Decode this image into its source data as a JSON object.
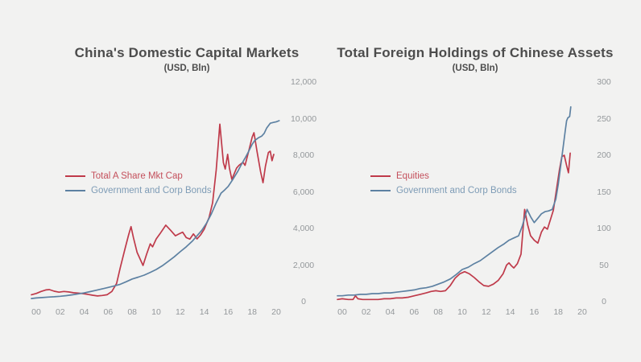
{
  "page": {
    "background": "#f2f2f1"
  },
  "chart_data": [
    {
      "type": "line",
      "title": "China's Domestic Capital Markets",
      "subtitle": "(USD, Bln)",
      "xlabel": "",
      "ylabel": "",
      "xlim": [
        -0.5,
        21
      ],
      "ylim": [
        0,
        12000
      ],
      "grid": false,
      "legend_position": "left-middle",
      "x_tick_labels": [
        "00",
        "02",
        "04",
        "06",
        "08",
        "10",
        "12",
        "14",
        "16",
        "18",
        "20"
      ],
      "x_tick_years": [
        0,
        2,
        4,
        6,
        8,
        10,
        12,
        14,
        16,
        18,
        20
      ],
      "y_tick_labels": [
        "0",
        "2,000",
        "4,000",
        "6,000",
        "8,000",
        "10,000",
        "12,000"
      ],
      "y_tick_values": [
        0,
        2000,
        4000,
        6000,
        8000,
        10000,
        12000
      ],
      "series": [
        {
          "name": "Total A Share Mkt Cap",
          "color": "#bf3a4a",
          "legend_text_color": "#c4505c",
          "points": [
            [
              -0.4,
              380
            ],
            [
              0,
              450
            ],
            [
              0.4,
              560
            ],
            [
              0.8,
              640
            ],
            [
              1.1,
              660
            ],
            [
              1.5,
              570
            ],
            [
              1.9,
              520
            ],
            [
              2.3,
              560
            ],
            [
              2.7,
              530
            ],
            [
              3.1,
              490
            ],
            [
              3.5,
              470
            ],
            [
              3.9,
              440
            ],
            [
              4.3,
              400
            ],
            [
              4.7,
              350
            ],
            [
              5.1,
              310
            ],
            [
              5.5,
              340
            ],
            [
              5.9,
              380
            ],
            [
              6.3,
              560
            ],
            [
              6.7,
              1000
            ],
            [
              7.0,
              1850
            ],
            [
              7.4,
              2900
            ],
            [
              7.7,
              3650
            ],
            [
              7.9,
              4100
            ],
            [
              8.1,
              3500
            ],
            [
              8.4,
              2700
            ],
            [
              8.9,
              1980
            ],
            [
              9.2,
              2600
            ],
            [
              9.5,
              3160
            ],
            [
              9.7,
              3000
            ],
            [
              10.0,
              3430
            ],
            [
              10.3,
              3700
            ],
            [
              10.8,
              4180
            ],
            [
              11.2,
              3900
            ],
            [
              11.6,
              3600
            ],
            [
              11.9,
              3700
            ],
            [
              12.2,
              3800
            ],
            [
              12.5,
              3500
            ],
            [
              12.8,
              3420
            ],
            [
              13.1,
              3700
            ],
            [
              13.4,
              3430
            ],
            [
              13.7,
              3650
            ],
            [
              14.0,
              3960
            ],
            [
              14.4,
              4600
            ],
            [
              14.7,
              5400
            ],
            [
              15.0,
              7200
            ],
            [
              15.3,
              9700
            ],
            [
              15.6,
              7600
            ],
            [
              15.75,
              7250
            ],
            [
              15.95,
              8050
            ],
            [
              16.1,
              7300
            ],
            [
              16.3,
              6680
            ],
            [
              16.5,
              7000
            ],
            [
              16.7,
              7300
            ],
            [
              16.9,
              7450
            ],
            [
              17.1,
              7550
            ],
            [
              17.25,
              7600
            ],
            [
              17.4,
              7450
            ],
            [
              17.7,
              8200
            ],
            [
              18.0,
              9000
            ],
            [
              18.15,
              9230
            ],
            [
              18.4,
              8200
            ],
            [
              18.7,
              7100
            ],
            [
              18.9,
              6500
            ],
            [
              19.1,
              7400
            ],
            [
              19.35,
              8150
            ],
            [
              19.5,
              8220
            ],
            [
              19.65,
              7700
            ],
            [
              19.8,
              8050
            ]
          ]
        },
        {
          "name": "Government and Corp Bonds",
          "color": "#5d81a2",
          "legend_text_color": "#7e9cb6",
          "points": [
            [
              -0.4,
              170
            ],
            [
              0,
              200
            ],
            [
              0.5,
              225
            ],
            [
              1,
              250
            ],
            [
              1.5,
              270
            ],
            [
              2,
              295
            ],
            [
              2.5,
              330
            ],
            [
              3,
              375
            ],
            [
              3.5,
              425
            ],
            [
              4,
              480
            ],
            [
              4.5,
              550
            ],
            [
              5,
              625
            ],
            [
              5.5,
              700
            ],
            [
              6,
              780
            ],
            [
              6.5,
              860
            ],
            [
              7,
              950
            ],
            [
              7.5,
              1090
            ],
            [
              8,
              1240
            ],
            [
              8.5,
              1340
            ],
            [
              9,
              1450
            ],
            [
              9.5,
              1600
            ],
            [
              10,
              1760
            ],
            [
              10.5,
              1960
            ],
            [
              11,
              2200
            ],
            [
              11.5,
              2450
            ],
            [
              12,
              2730
            ],
            [
              12.5,
              3000
            ],
            [
              13,
              3300
            ],
            [
              13.4,
              3600
            ],
            [
              13.8,
              3900
            ],
            [
              14.2,
              4300
            ],
            [
              14.6,
              4800
            ],
            [
              15,
              5400
            ],
            [
              15.4,
              5930
            ],
            [
              15.7,
              6100
            ],
            [
              16.0,
              6300
            ],
            [
              16.4,
              6700
            ],
            [
              16.8,
              7120
            ],
            [
              17.1,
              7500
            ],
            [
              17.4,
              7840
            ],
            [
              17.7,
              8200
            ],
            [
              18.0,
              8600
            ],
            [
              18.2,
              8800
            ],
            [
              18.5,
              8950
            ],
            [
              18.8,
              9050
            ],
            [
              19.0,
              9200
            ],
            [
              19.2,
              9480
            ],
            [
              19.5,
              9750
            ],
            [
              19.8,
              9800
            ],
            [
              20.0,
              9830
            ],
            [
              20.25,
              9890
            ]
          ]
        }
      ]
    },
    {
      "type": "line",
      "title": "Total Foreign Holdings of Chinese Assets",
      "subtitle": "(USD, Bln)",
      "xlabel": "",
      "ylabel": "",
      "xlim": [
        -0.5,
        21
      ],
      "ylim": [
        0,
        300
      ],
      "grid": false,
      "legend_position": "left-middle",
      "x_tick_labels": [
        "00",
        "02",
        "04",
        "06",
        "08",
        "10",
        "12",
        "14",
        "16",
        "18",
        "20"
      ],
      "x_tick_years": [
        0,
        2,
        4,
        6,
        8,
        10,
        12,
        14,
        16,
        18,
        20
      ],
      "y_tick_labels": [
        "0",
        "50",
        "100",
        "150",
        "200",
        "250",
        "300"
      ],
      "y_tick_values": [
        0,
        50,
        100,
        150,
        200,
        250,
        300
      ],
      "series": [
        {
          "name": "Equities",
          "color": "#bf3a4a",
          "legend_text_color": "#c4505c",
          "points": [
            [
              -0.4,
              3
            ],
            [
              0,
              4
            ],
            [
              0.5,
              3
            ],
            [
              0.9,
              3
            ],
            [
              1.1,
              8
            ],
            [
              1.3,
              4
            ],
            [
              1.7,
              3
            ],
            [
              2.1,
              3
            ],
            [
              2.5,
              3
            ],
            [
              3,
              3
            ],
            [
              3.5,
              4
            ],
            [
              4,
              4
            ],
            [
              4.5,
              5
            ],
            [
              5,
              5
            ],
            [
              5.5,
              6
            ],
            [
              6,
              8
            ],
            [
              6.5,
              10
            ],
            [
              7,
              12
            ],
            [
              7.4,
              14
            ],
            [
              7.8,
              15
            ],
            [
              8.2,
              14
            ],
            [
              8.6,
              15
            ],
            [
              9.0,
              22
            ],
            [
              9.4,
              32
            ],
            [
              9.8,
              38
            ],
            [
              10.2,
              41
            ],
            [
              10.6,
              38
            ],
            [
              11.0,
              33
            ],
            [
              11.4,
              27
            ],
            [
              11.8,
              22
            ],
            [
              12.2,
              21
            ],
            [
              12.6,
              24
            ],
            [
              13.0,
              29
            ],
            [
              13.4,
              38
            ],
            [
              13.7,
              50
            ],
            [
              13.9,
              53
            ],
            [
              14.1,
              49
            ],
            [
              14.3,
              46
            ],
            [
              14.6,
              52
            ],
            [
              14.9,
              65
            ],
            [
              15.2,
              126
            ],
            [
              15.45,
              105
            ],
            [
              15.7,
              90
            ],
            [
              16.0,
              84
            ],
            [
              16.3,
              80
            ],
            [
              16.6,
              95
            ],
            [
              16.85,
              102
            ],
            [
              17.1,
              99
            ],
            [
              17.35,
              112
            ],
            [
              17.6,
              125
            ],
            [
              17.9,
              158
            ],
            [
              18.1,
              180
            ],
            [
              18.3,
              198
            ],
            [
              18.5,
              200
            ],
            [
              18.7,
              186
            ],
            [
              18.85,
              176
            ],
            [
              19.0,
              203
            ]
          ]
        },
        {
          "name": "Government and Corp Bonds",
          "color": "#5d81a2",
          "legend_text_color": "#7e9cb6",
          "points": [
            [
              -0.4,
              8
            ],
            [
              0,
              8
            ],
            [
              0.5,
              9
            ],
            [
              1,
              9
            ],
            [
              1.5,
              10
            ],
            [
              2,
              10
            ],
            [
              2.5,
              11
            ],
            [
              3,
              11
            ],
            [
              3.5,
              12
            ],
            [
              4,
              12
            ],
            [
              4.5,
              13
            ],
            [
              5,
              14
            ],
            [
              5.5,
              15
            ],
            [
              6,
              16
            ],
            [
              6.5,
              18
            ],
            [
              7,
              19
            ],
            [
              7.5,
              21
            ],
            [
              8,
              24
            ],
            [
              8.5,
              27
            ],
            [
              9,
              31
            ],
            [
              9.5,
              37
            ],
            [
              10,
              44
            ],
            [
              10.5,
              47
            ],
            [
              11,
              52
            ],
            [
              11.5,
              56
            ],
            [
              12,
              62
            ],
            [
              12.5,
              68
            ],
            [
              13,
              74
            ],
            [
              13.5,
              79
            ],
            [
              13.9,
              84
            ],
            [
              14.3,
              87
            ],
            [
              14.7,
              90
            ],
            [
              15.0,
              103
            ],
            [
              15.4,
              126
            ],
            [
              15.7,
              116
            ],
            [
              16.0,
              108
            ],
            [
              16.3,
              114
            ],
            [
              16.6,
              120
            ],
            [
              16.9,
              123
            ],
            [
              17.2,
              124
            ],
            [
              17.5,
              126
            ],
            [
              17.8,
              140
            ],
            [
              18.0,
              160
            ],
            [
              18.2,
              185
            ],
            [
              18.4,
              210
            ],
            [
              18.6,
              235
            ],
            [
              18.7,
              247
            ],
            [
              18.8,
              251
            ],
            [
              18.95,
              253
            ],
            [
              19.05,
              266
            ]
          ]
        }
      ]
    }
  ]
}
